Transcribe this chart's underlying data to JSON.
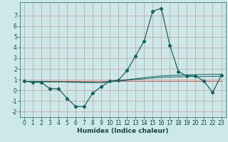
{
  "xlabel": "Humidex (Indice chaleur)",
  "xlim": [
    -0.5,
    23.5
  ],
  "ylim": [
    -2.5,
    8.2
  ],
  "xticks": [
    0,
    1,
    2,
    3,
    4,
    5,
    6,
    7,
    8,
    9,
    10,
    11,
    12,
    13,
    14,
    15,
    16,
    17,
    18,
    19,
    20,
    21,
    22,
    23
  ],
  "yticks": [
    -2,
    -1,
    0,
    1,
    2,
    3,
    4,
    5,
    6,
    7
  ],
  "bg_color": "#cce8e8",
  "grid_color": "#c8a8a8",
  "line_color": "#1a6060",
  "red_line_color": "#c86060",
  "x": [
    0,
    1,
    2,
    3,
    4,
    5,
    6,
    7,
    8,
    9,
    10,
    11,
    12,
    13,
    14,
    15,
    16,
    17,
    18,
    19,
    20,
    21,
    22,
    23
  ],
  "y_main": [
    0.85,
    0.75,
    0.75,
    0.15,
    0.15,
    -0.75,
    -1.5,
    -1.5,
    -0.25,
    0.35,
    0.85,
    0.95,
    1.85,
    3.2,
    4.6,
    7.4,
    7.65,
    4.2,
    1.75,
    1.35,
    1.35,
    0.85,
    -0.2,
    1.4
  ],
  "y_flat_red": [
    0.85,
    0.85,
    0.85,
    0.85,
    0.85,
    0.85,
    0.85,
    0.85,
    0.85,
    0.85,
    0.85,
    0.85,
    0.85,
    0.85,
    0.85,
    0.85,
    0.85,
    0.85,
    0.85,
    0.85,
    0.85,
    0.85,
    0.85,
    0.85
  ],
  "y_upper_slope": [
    0.85,
    0.83,
    0.82,
    0.8,
    0.79,
    0.77,
    0.76,
    0.74,
    0.73,
    0.72,
    0.82,
    0.91,
    1.0,
    1.09,
    1.18,
    1.27,
    1.35,
    1.38,
    1.41,
    1.44,
    1.47,
    1.49,
    1.5,
    1.51
  ],
  "y_lower_slope": [
    0.85,
    0.83,
    0.82,
    0.8,
    0.79,
    0.77,
    0.76,
    0.74,
    0.73,
    0.72,
    0.79,
    0.87,
    0.94,
    1.01,
    1.08,
    1.15,
    1.22,
    1.24,
    1.26,
    1.28,
    1.29,
    1.3,
    1.31,
    1.32
  ]
}
